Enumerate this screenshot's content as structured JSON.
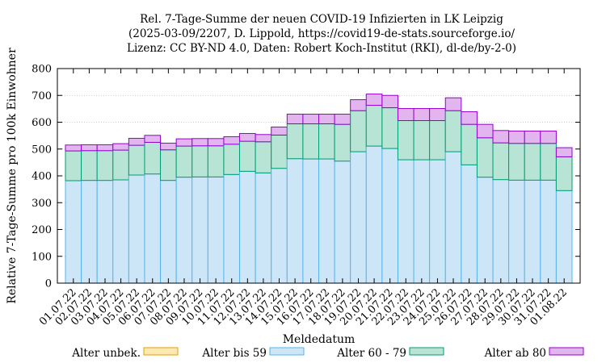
{
  "chart_data": {
    "type": "bar",
    "stacked": true,
    "title_lines": [
      "Rel. 7-Tage-Summe der neuen COVID-19 Infizierten in LK Leipzig",
      "(2025-03-09/2207, D. Lippold, https://covid19-de-stats.sourceforge.io/",
      "Lizenz: CC BY-ND 4.0, Daten: Robert Koch-Institut (RKI), dl-de/by-2-0)"
    ],
    "xlabel": "Meldedatum",
    "ylabel": "Relative 7-Tage-Summe pro 100k Einwohner",
    "ylim": [
      0,
      800
    ],
    "yticks": [
      0,
      100,
      200,
      300,
      400,
      500,
      600,
      700,
      800
    ],
    "categories": [
      "01.07.22",
      "02.07.22",
      "03.07.22",
      "04.07.22",
      "05.07.22",
      "06.07.22",
      "07.07.22",
      "08.07.22",
      "09.07.22",
      "10.07.22",
      "11.07.22",
      "12.07.22",
      "13.07.22",
      "14.07.22",
      "15.07.22",
      "16.07.22",
      "17.07.22",
      "18.07.22",
      "19.07.22",
      "20.07.22",
      "21.07.22",
      "22.07.22",
      "23.07.22",
      "24.07.22",
      "25.07.22",
      "26.07.22",
      "27.07.22",
      "28.07.22",
      "29.07.22",
      "30.07.22",
      "31.07.22",
      "01.08.22"
    ],
    "legend_position": "bottom",
    "series": [
      {
        "name": "Alter unbek.",
        "fill": "#fde9b0",
        "stroke": "#e69f00",
        "values": [
          0,
          0,
          0,
          0,
          0,
          0,
          0,
          0,
          0,
          0,
          0,
          0,
          0,
          0,
          0,
          0,
          0,
          0,
          0,
          0,
          0,
          0,
          0,
          0,
          0,
          0,
          0,
          0,
          0,
          0,
          0,
          0
        ]
      },
      {
        "name": "Alter bis 59",
        "fill": "#cde6f7",
        "stroke": "#56b4e9",
        "values": [
          382,
          383,
          383,
          385,
          403,
          407,
          383,
          395,
          396,
          396,
          405,
          417,
          411,
          428,
          464,
          463,
          463,
          455,
          490,
          511,
          502,
          460,
          460,
          460,
          490,
          441,
          395,
          386,
          384,
          384,
          384,
          345
        ]
      },
      {
        "name": "Alter 60 - 79",
        "fill": "#b8e4d5",
        "stroke": "#009e73",
        "values": [
          111,
          111,
          111,
          111,
          111,
          118,
          114,
          116,
          116,
          116,
          113,
          112,
          116,
          124,
          130,
          131,
          131,
          137,
          153,
          152,
          152,
          146,
          146,
          146,
          153,
          151,
          147,
          137,
          137,
          137,
          137,
          126
        ]
      },
      {
        "name": "Alter ab 80",
        "fill": "#e2b5ee",
        "stroke": "#9400d3",
        "values": [
          22,
          22,
          22,
          24,
          26,
          26,
          25,
          27,
          27,
          27,
          28,
          29,
          27,
          30,
          36,
          36,
          36,
          38,
          41,
          42,
          46,
          45,
          45,
          45,
          48,
          47,
          50,
          46,
          46,
          46,
          46,
          34
        ]
      }
    ]
  }
}
